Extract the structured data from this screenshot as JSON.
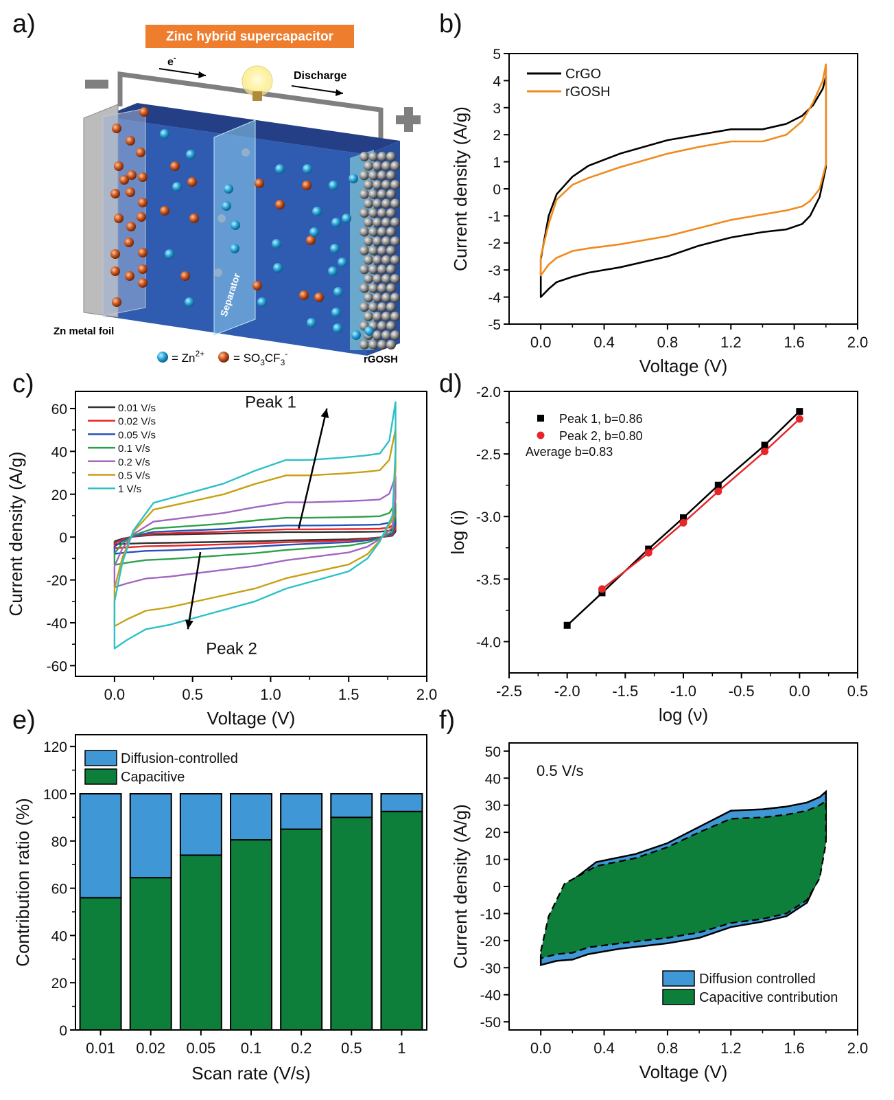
{
  "labels": {
    "a": "a)",
    "b": "b)",
    "c": "c)",
    "d": "d)",
    "e": "e)",
    "f": "f)"
  },
  "schematic": {
    "title": "Zinc hybrid supercapacitor",
    "electron": "e",
    "electron_sup": "-",
    "discharge": "Discharge",
    "separator": "Separator",
    "zn_foil": "Zn metal foil",
    "cathode": "rGOSH",
    "legend_zn_pre": "= Zn",
    "legend_zn_sup": "2+",
    "legend_anion_pre": "= SO",
    "legend_anion_sub1": "3",
    "legend_anion_mid": "CF",
    "legend_anion_sub2": "3",
    "legend_anion_sup": "-",
    "colors": {
      "zn_ion": "#29a3d8",
      "anion": "#c8561f",
      "electrolyte": "#2f5bb0",
      "title_bg": "#ee7d2e"
    }
  },
  "chart_data": [
    {
      "id": "b",
      "type": "line",
      "xlabel": "Voltage (V)",
      "ylabel": "Current density (A/g)",
      "xlim": [
        -0.2,
        2.0
      ],
      "ylim": [
        -5,
        5
      ],
      "xticks": [
        0.0,
        0.4,
        0.8,
        1.2,
        1.6,
        2.0
      ],
      "xtick_labels": [
        "0.0",
        "0.4",
        "0.8",
        "1.2",
        "1.6",
        "2.0"
      ],
      "yticks": [
        -5,
        -4,
        -3,
        -2,
        -1,
        0,
        1,
        2,
        3,
        4,
        5
      ],
      "ytick_labels": [
        "-5",
        "-4",
        "-3",
        "-2",
        "-1",
        "0",
        "1",
        "2",
        "3",
        "4",
        "5"
      ],
      "legend_position": "top-left",
      "series": [
        {
          "name": "CrGO",
          "color": "#000000",
          "x": [
            0.0,
            0.05,
            0.1,
            0.2,
            0.3,
            0.5,
            0.8,
            1.0,
            1.2,
            1.4,
            1.55,
            1.65,
            1.72,
            1.78,
            1.8,
            1.8,
            1.76,
            1.7,
            1.65,
            1.55,
            1.4,
            1.2,
            1.0,
            0.8,
            0.5,
            0.3,
            0.2,
            0.1,
            0.05,
            0.0,
            0.0
          ],
          "y": [
            -2.6,
            -1.0,
            -0.2,
            0.45,
            0.85,
            1.3,
            1.8,
            2.0,
            2.2,
            2.2,
            2.4,
            2.7,
            3.1,
            3.7,
            4.15,
            0.8,
            -0.3,
            -1.0,
            -1.3,
            -1.5,
            -1.6,
            -1.8,
            -2.1,
            -2.5,
            -2.9,
            -3.1,
            -3.25,
            -3.45,
            -3.7,
            -4.0,
            -2.6
          ]
        },
        {
          "name": "rGOSH",
          "color": "#f08a1c",
          "x": [
            0.0,
            0.05,
            0.1,
            0.2,
            0.3,
            0.5,
            0.8,
            1.0,
            1.2,
            1.4,
            1.55,
            1.65,
            1.72,
            1.78,
            1.8,
            1.8,
            1.76,
            1.7,
            1.65,
            1.55,
            1.4,
            1.2,
            1.0,
            0.8,
            0.5,
            0.3,
            0.2,
            0.1,
            0.05,
            0.0,
            0.0
          ],
          "y": [
            -2.5,
            -1.3,
            -0.4,
            0.15,
            0.4,
            0.8,
            1.3,
            1.55,
            1.75,
            1.75,
            2.0,
            2.5,
            3.2,
            4.0,
            4.6,
            0.9,
            0.0,
            -0.45,
            -0.65,
            -0.8,
            -0.95,
            -1.15,
            -1.45,
            -1.75,
            -2.05,
            -2.2,
            -2.3,
            -2.55,
            -2.8,
            -3.2,
            -2.5
          ]
        }
      ]
    },
    {
      "id": "c",
      "type": "line",
      "xlabel": "Voltage (V)",
      "ylabel": "Current density (A/g)",
      "xlim": [
        -0.25,
        2.0
      ],
      "ylim": [
        -65,
        68
      ],
      "xticks": [
        0.0,
        0.5,
        1.0,
        1.5,
        2.0
      ],
      "xtick_labels": [
        "0.0",
        "0.5",
        "1.0",
        "1.5",
        "2.0"
      ],
      "yticks": [
        -60,
        -40,
        -20,
        0,
        20,
        40,
        60
      ],
      "ytick_labels": [
        "-60",
        "-40",
        "-20",
        "0",
        "20",
        "40",
        "60"
      ],
      "legend_position": "top-left",
      "annotations": [
        {
          "text": "Peak 1",
          "x": 1.0,
          "y": 63
        },
        {
          "text": "Peak 2",
          "x": 0.75,
          "y": -52
        }
      ],
      "arrows": [
        {
          "x1": 1.18,
          "y1": 4,
          "x2": 1.36,
          "y2": 60
        },
        {
          "x1": 0.55,
          "y1": -7,
          "x2": 0.47,
          "y2": -43
        }
      ],
      "series": [
        {
          "name": "0.01 V/s",
          "color": "#333333",
          "scale": 0.065
        },
        {
          "name": "0.02 V/s",
          "color": "#e8262a",
          "scale": 0.1
        },
        {
          "name": "0.05 V/s",
          "color": "#2850b8",
          "scale": 0.15
        },
        {
          "name": "0.1 V/s",
          "color": "#2ca04a",
          "scale": 0.25
        },
        {
          "name": "0.2 V/s",
          "color": "#a066c2",
          "scale": 0.45
        },
        {
          "name": "0.5 V/s",
          "color": "#c8a012",
          "scale": 0.8
        },
        {
          "name": "1 V/s",
          "color": "#2cc0c8",
          "scale": 1.0
        }
      ],
      "base_loop": {
        "x": [
          0.0,
          0.05,
          0.12,
          0.25,
          0.45,
          0.7,
          0.9,
          1.1,
          1.25,
          1.45,
          1.6,
          1.7,
          1.76,
          1.8,
          1.8,
          1.78,
          1.7,
          1.62,
          1.5,
          1.3,
          1.1,
          0.9,
          0.6,
          0.35,
          0.2,
          0.08,
          0.0,
          0.0
        ],
        "y": [
          -30,
          -12,
          3,
          16,
          20,
          25,
          31,
          36,
          36,
          37,
          38,
          39,
          45,
          63,
          40,
          10,
          -2,
          -10,
          -16,
          -20,
          -24,
          -30,
          -36,
          -41,
          -43,
          -48,
          -52,
          -30
        ]
      }
    },
    {
      "id": "d",
      "type": "scatter",
      "xlabel": "log (ν)",
      "ylabel": "log (i)",
      "xlim": [
        -2.5,
        0.5
      ],
      "ylim": [
        -4.25,
        -2.0
      ],
      "xticks": [
        -2.5,
        -2.0,
        -1.5,
        -1.0,
        -0.5,
        0.0,
        0.5
      ],
      "xtick_labels": [
        "-2.5",
        "-2.0",
        "-1.5",
        "-1.0",
        "-0.5",
        "0.0",
        "0.5"
      ],
      "yticks": [
        -4.0,
        -3.5,
        -3.0,
        -2.5,
        -2.0
      ],
      "ytick_labels": [
        "-4.0",
        "-3.5",
        "-3.0",
        "-2.5",
        "-2.0"
      ],
      "legend_position": "top-left",
      "annotation": "Average b=0.83",
      "series": [
        {
          "name": "Peak 1, b=0.86",
          "color": "#000000",
          "marker": "square",
          "x": [
            -2.0,
            -1.7,
            -1.3,
            -1.0,
            -0.7,
            -0.3,
            0.0
          ],
          "y": [
            -3.87,
            -3.61,
            -3.26,
            -3.01,
            -2.75,
            -2.43,
            -2.16
          ]
        },
        {
          "name": "Peak 2, b=0.80",
          "color": "#e8262a",
          "marker": "circle",
          "x": [
            -1.7,
            -1.3,
            -1.0,
            -0.7,
            -0.3,
            0.0
          ],
          "y": [
            -3.58,
            -3.29,
            -3.05,
            -2.8,
            -2.48,
            -2.22
          ]
        }
      ]
    },
    {
      "id": "e",
      "type": "bar",
      "xlabel": "Scan rate (V/s)",
      "ylabel": "Contribution ratio (%)",
      "ylim": [
        0,
        125
      ],
      "yticks": [
        0,
        20,
        40,
        60,
        80,
        100,
        120
      ],
      "ytick_labels": [
        "0",
        "20",
        "40",
        "60",
        "80",
        "100",
        "120"
      ],
      "categories": [
        "0.01",
        "0.02",
        "0.05",
        "0.1",
        "0.2",
        "0.5",
        "1"
      ],
      "legend_position": "top-left",
      "stacked": true,
      "series": [
        {
          "name": "Capacitive",
          "color": "#0e7f3b",
          "values": [
            56,
            64.5,
            74,
            80.5,
            85,
            90,
            92.5
          ]
        },
        {
          "name": "Diffusion-controlled",
          "color": "#3f97d6",
          "values": [
            44,
            35.5,
            26,
            19.5,
            15,
            10,
            7.5
          ]
        }
      ]
    },
    {
      "id": "f",
      "type": "area",
      "xlabel": "Voltage (V)",
      "ylabel": "Current density (A/g)",
      "xlim": [
        -0.2,
        2.0
      ],
      "ylim": [
        -53,
        53
      ],
      "xticks": [
        0.0,
        0.4,
        0.8,
        1.2,
        1.6,
        2.0
      ],
      "xtick_labels": [
        "0.0",
        "0.4",
        "0.8",
        "1.2",
        "1.6",
        "2.0"
      ],
      "yticks": [
        -50,
        -40,
        -30,
        -20,
        -10,
        0,
        10,
        20,
        30,
        40,
        50
      ],
      "ytick_labels": [
        "-50",
        "-40",
        "-30",
        "-20",
        "-10",
        "0",
        "10",
        "20",
        "30",
        "40",
        "50"
      ],
      "annotation": "0.5 V/s",
      "legend_position": "bottom-right",
      "series": [
        {
          "name": "Diffusion controlled",
          "color": "#3f97d6",
          "x": [
            0.0,
            0.05,
            0.15,
            0.35,
            0.6,
            0.8,
            1.0,
            1.2,
            1.4,
            1.55,
            1.68,
            1.76,
            1.8,
            1.8,
            1.76,
            1.68,
            1.55,
            1.4,
            1.2,
            1.0,
            0.8,
            0.5,
            0.3,
            0.2,
            0.1,
            0.0,
            0.0
          ],
          "y": [
            -26,
            -12,
            0,
            9,
            12,
            16,
            22,
            28,
            28.5,
            29.5,
            31,
            33,
            35,
            18,
            4,
            -6,
            -11,
            -13,
            -15,
            -19,
            -21,
            -23,
            -25,
            -27,
            -27.5,
            -29,
            -26
          ]
        },
        {
          "name": "Capacitive contribution",
          "color": "#0e7f3b",
          "x": [
            0.0,
            0.05,
            0.15,
            0.35,
            0.6,
            0.8,
            1.0,
            1.2,
            1.4,
            1.55,
            1.68,
            1.76,
            1.8,
            1.8,
            1.76,
            1.68,
            1.55,
            1.4,
            1.2,
            1.0,
            0.8,
            0.5,
            0.3,
            0.2,
            0.1,
            0.0,
            0.0
          ],
          "y": [
            -24,
            -11,
            1,
            7.5,
            10.5,
            14.5,
            20,
            25,
            25.5,
            26.5,
            28,
            30,
            31.5,
            16,
            3,
            -5,
            -10,
            -12,
            -13.5,
            -17,
            -19,
            -21,
            -22.5,
            -24.5,
            -25,
            -26.5,
            -24
          ]
        }
      ]
    }
  ]
}
